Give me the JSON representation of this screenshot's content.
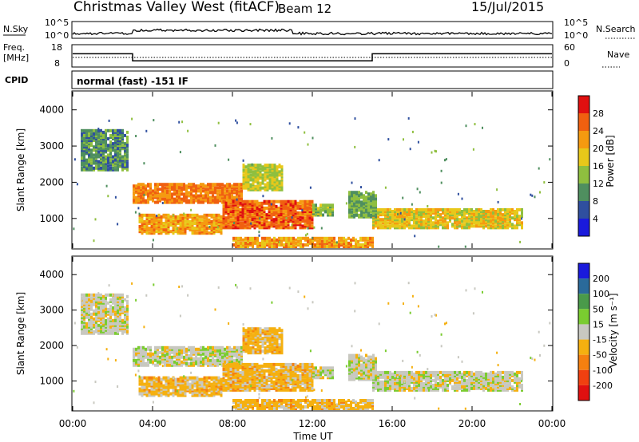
{
  "header": {
    "title": "Christmas Valley West (fitACF)",
    "beam": "Beam 12",
    "date": "15/Jul/2015",
    "mode_label": "normal (fast) -151 IF"
  },
  "top_panels": {
    "nsky_label": "N.Sky",
    "nsky_ticks": [
      "10^5",
      "10^0"
    ],
    "nsearch_label": "N.Search",
    "nsearch_ticks": [
      "10^5",
      "10^0"
    ],
    "freq_label_1": "Freq.",
    "freq_label_2": "[MHz]",
    "freq_ticks": [
      "18",
      "8"
    ],
    "nave_label": "Nave",
    "nave_ticks": [
      "60",
      "0"
    ],
    "cpid_label": "CPID"
  },
  "panels": {
    "ylabel": "Slant Range [km]",
    "yticks": [
      "1000",
      "2000",
      "3000",
      "4000"
    ],
    "xticks": [
      "00:00",
      "04:00",
      "08:00",
      "12:00",
      "16:00",
      "20:00",
      "00:00"
    ],
    "xlabel": "Time UT"
  },
  "colorbars": {
    "power_label": "Power [dB]",
    "power_ticks": [
      "4",
      "8",
      "12",
      "16",
      "20",
      "24",
      "28"
    ],
    "power_colors": [
      "#1a1adc",
      "#2f4f9f",
      "#4f8f5f",
      "#8fbf3f",
      "#e8c81a",
      "#f59a10",
      "#f06010",
      "#e01010"
    ],
    "velocity_label": "Velocity [m s⁻¹]",
    "velocity_ticks": [
      "200",
      "100",
      "50",
      "15",
      "-15",
      "-50",
      "-100",
      "-200"
    ],
    "velocity_colors": [
      "#1a1adc",
      "#2a6a9a",
      "#4a9a4a",
      "#7acc30",
      "#c8c8c0",
      "#f5b010",
      "#f58010",
      "#f04010",
      "#e01010"
    ]
  },
  "chart_data": [
    {
      "type": "line",
      "name": "frequency",
      "x_unit": "hours UT",
      "y_unit": "MHz",
      "steps": [
        [
          0,
          14
        ],
        [
          3,
          10.6
        ],
        [
          15,
          14
        ],
        [
          24,
          14
        ]
      ],
      "ylim": [
        8,
        18
      ]
    },
    {
      "type": "heatmap",
      "name": "power",
      "x_unit": "hours UT",
      "y_unit": "km",
      "xlim": [
        0,
        24
      ],
      "ylim": [
        180,
        4500
      ],
      "regions": [
        {
          "t0": 0.4,
          "t1": 2.8,
          "r0": 2300,
          "r1": 3400,
          "value_db": 10
        },
        {
          "t0": 3.0,
          "t1": 8.5,
          "r0": 1400,
          "r1": 1900,
          "value_db": 24
        },
        {
          "t0": 8.5,
          "t1": 10.5,
          "r0": 1750,
          "r1": 2450,
          "value_db": 16
        },
        {
          "t0": 3.3,
          "t1": 7.5,
          "r0": 550,
          "r1": 1050,
          "value_db": 22
        },
        {
          "t0": 7.5,
          "t1": 12.0,
          "r0": 700,
          "r1": 1450,
          "value_db": 26
        },
        {
          "t0": 12.0,
          "t1": 13.0,
          "r0": 1050,
          "r1": 1350,
          "value_db": 14
        },
        {
          "t0": 8.0,
          "t1": 15.0,
          "r0": 180,
          "r1": 420,
          "value_db": 22
        },
        {
          "t0": 15.0,
          "t1": 22.5,
          "r0": 700,
          "r1": 1200,
          "value_db": 18
        },
        {
          "t0": 13.8,
          "t1": 15.2,
          "r0": 1000,
          "r1": 1700,
          "value_db": 12
        }
      ]
    },
    {
      "type": "heatmap",
      "name": "velocity",
      "x_unit": "hours UT",
      "y_unit": "km",
      "xlim": [
        0,
        24
      ],
      "ylim": [
        180,
        4500
      ],
      "regions": [
        {
          "t0": 0.4,
          "t1": 2.8,
          "r0": 2300,
          "r1": 3400,
          "value_ms": 0
        },
        {
          "t0": 3.0,
          "t1": 8.5,
          "r0": 1400,
          "r1": 1900,
          "value_ms": 0
        },
        {
          "t0": 8.5,
          "t1": 10.5,
          "r0": 1750,
          "r1": 2450,
          "value_ms": -30
        },
        {
          "t0": 3.3,
          "t1": 7.5,
          "r0": 550,
          "r1": 1050,
          "value_ms": -30
        },
        {
          "t0": 7.5,
          "t1": 12.0,
          "r0": 700,
          "r1": 1450,
          "value_ms": -30
        },
        {
          "t0": 12.0,
          "t1": 13.0,
          "r0": 1050,
          "r1": 1350,
          "value_ms": 0
        },
        {
          "t0": 8.0,
          "t1": 15.0,
          "r0": 180,
          "r1": 420,
          "value_ms": -30
        },
        {
          "t0": 15.0,
          "t1": 22.5,
          "r0": 700,
          "r1": 1200,
          "value_ms": 0
        },
        {
          "t0": 13.8,
          "t1": 15.2,
          "r0": 1000,
          "r1": 1700,
          "value_ms": 0
        }
      ]
    }
  ]
}
